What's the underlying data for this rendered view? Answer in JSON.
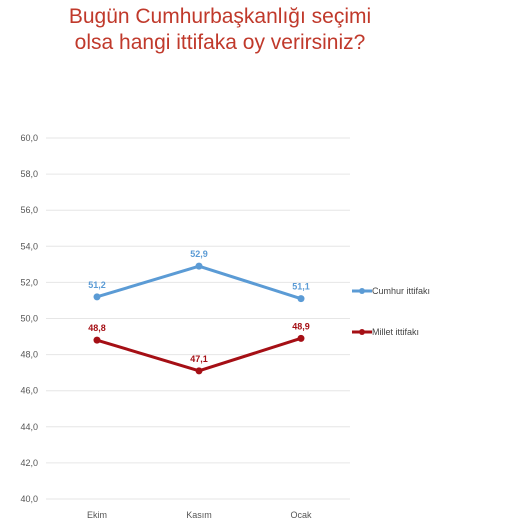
{
  "chart_data": {
    "type": "line",
    "title": [
      "Bugün Cumhurbaşkanlığı seçimi",
      "olsa hangi ittifaka oy verirsiniz?"
    ],
    "categories": [
      "Ekim",
      "Kasım",
      "Ocak"
    ],
    "y_ticks": [
      "60,0",
      "58,0",
      "56,0",
      "54,0",
      "52,0",
      "50,0",
      "48,0",
      "46,0",
      "44,0",
      "42,0",
      "40,0"
    ],
    "ylim": [
      40,
      60
    ],
    "grid": true,
    "legend_position": "right",
    "series": [
      {
        "name": "Cumhur ittifakı",
        "values": [
          51.2,
          52.9,
          51.1
        ],
        "labels": [
          "51,2",
          "52,9",
          "51,1"
        ],
        "color": "#5b9bd5"
      },
      {
        "name": "Millet ittifakı",
        "values": [
          48.8,
          47.1,
          48.9
        ],
        "labels": [
          "48,8",
          "47,1",
          "48,9"
        ],
        "color": "#a50f15"
      }
    ]
  }
}
